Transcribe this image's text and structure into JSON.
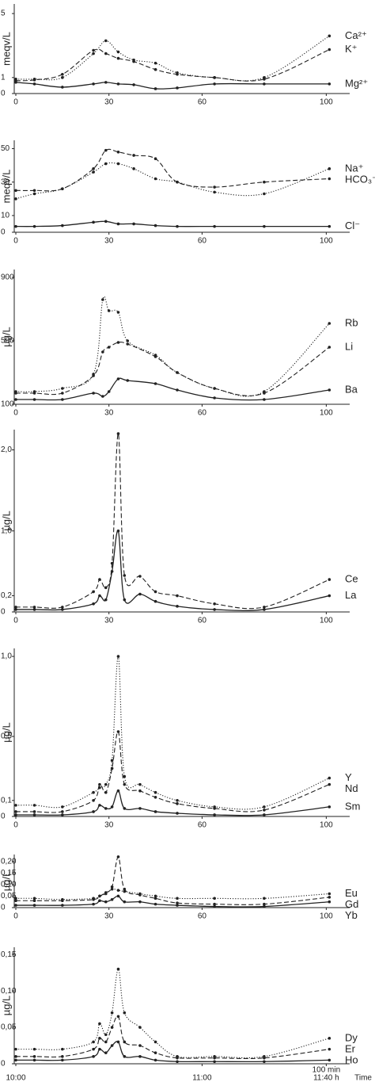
{
  "chart_data": [
    {
      "type": "line",
      "y_label": "meqv/L",
      "xlim": [
        0,
        105
      ],
      "xticks": [
        0,
        30,
        60,
        100
      ],
      "ylim": [
        0,
        5.6
      ],
      "yticks": [
        0,
        1,
        5
      ],
      "x": [
        0,
        6,
        15,
        25,
        29,
        33,
        38,
        45,
        52,
        64,
        80,
        101
      ],
      "series": [
        {
          "name": "Ca²⁺",
          "color": "#222222",
          "line_style": "dotted",
          "values": [
            0.9,
            0.9,
            1.0,
            2.5,
            3.3,
            2.6,
            2.1,
            1.9,
            1.3,
            1.0,
            1.0,
            3.6
          ]
        },
        {
          "name": "K⁺",
          "color": "#222222",
          "line_style": "dashed",
          "values": [
            0.8,
            0.85,
            1.2,
            2.7,
            2.5,
            2.2,
            2.0,
            1.5,
            1.2,
            1.0,
            0.9,
            2.75
          ]
        },
        {
          "name": "Mg²⁺",
          "color": "#222222",
          "line_style": "solid",
          "values": [
            0.7,
            0.6,
            0.4,
            0.6,
            0.7,
            0.6,
            0.55,
            0.3,
            0.35,
            0.6,
            0.6,
            0.6
          ]
        }
      ]
    },
    {
      "type": "line",
      "y_label": "meqv/L",
      "xlim": [
        0,
        105
      ],
      "xticks": [
        0,
        30,
        60,
        100
      ],
      "ylim": [
        0,
        55
      ],
      "yticks": [
        0,
        10,
        30,
        50
      ],
      "x": [
        0,
        6,
        15,
        25,
        29,
        33,
        38,
        45,
        52,
        64,
        80,
        101
      ],
      "series": [
        {
          "name": "Na⁺",
          "color": "#222222",
          "line_style": "dotted",
          "values": [
            20,
            23,
            26,
            36,
            41,
            41,
            38,
            32,
            30,
            24,
            23,
            38
          ]
        },
        {
          "name": "HCO₃⁻",
          "color": "#222222",
          "line_style": "dashed",
          "values": [
            25,
            25,
            26,
            38,
            49,
            48,
            46,
            44,
            30,
            27,
            30,
            32
          ]
        },
        {
          "name": "Cl⁻",
          "color": "#222222",
          "line_style": "solid",
          "values": [
            3.5,
            3.5,
            4,
            6,
            6.5,
            5,
            5,
            4,
            3.5,
            3.5,
            3.5,
            3.5
          ]
        }
      ]
    },
    {
      "type": "line",
      "y_label": "µg/L",
      "xlim": [
        0,
        105
      ],
      "xticks": [
        0,
        30,
        60,
        100
      ],
      "ylim": [
        100,
        950
      ],
      "yticks": [
        100,
        500,
        900
      ],
      "x": [
        0,
        6,
        15,
        25,
        28,
        30,
        33,
        36,
        45,
        52,
        64,
        80,
        101
      ],
      "series": [
        {
          "name": "Rb",
          "color": "#222222",
          "line_style": "dotted",
          "values": [
            180,
            180,
            200,
            290,
            760,
            690,
            680,
            500,
            410,
            300,
            200,
            180,
            610
          ]
        },
        {
          "name": "Li",
          "color": "#222222",
          "line_style": "dashed",
          "values": [
            170,
            170,
            170,
            280,
            430,
            460,
            490,
            480,
            400,
            300,
            200,
            170,
            460
          ]
        },
        {
          "name": "Ba",
          "color": "#222222",
          "line_style": "solid",
          "values": [
            130,
            130,
            130,
            170,
            150,
            180,
            260,
            250,
            230,
            190,
            140,
            130,
            190
          ]
        }
      ]
    },
    {
      "type": "line",
      "y_label": "µg/L",
      "xlim": [
        0,
        105
      ],
      "xticks": [
        0,
        30,
        60,
        100
      ],
      "ylim": [
        0,
        2.25
      ],
      "yticks": [
        0,
        {
          "value": 0.2,
          "label": "0,2"
        },
        {
          "value": 1.0,
          "label": "1,0"
        },
        {
          "value": 2.0,
          "label": "2,0"
        }
      ],
      "x": [
        0,
        6,
        15,
        25,
        27,
        29,
        31,
        33,
        35,
        40,
        45,
        52,
        64,
        80,
        101
      ],
      "series": [
        {
          "name": "Ce",
          "color": "#222222",
          "line_style": "dashed",
          "values": [
            0.06,
            0.06,
            0.06,
            0.25,
            0.4,
            0.3,
            0.6,
            2.2,
            0.45,
            0.44,
            0.25,
            0.2,
            0.1,
            0.06,
            0.4
          ]
        },
        {
          "name": "La",
          "color": "#222222",
          "line_style": "solid",
          "values": [
            0.03,
            0.03,
            0.03,
            0.1,
            0.2,
            0.15,
            0.5,
            1.0,
            0.15,
            0.22,
            0.13,
            0.07,
            0.03,
            0.03,
            0.2
          ]
        }
      ]
    },
    {
      "type": "line",
      "y_label": "µg/L",
      "xlim": [
        0,
        105
      ],
      "xticks": [
        0,
        30,
        60,
        100
      ],
      "ylim": [
        0,
        1.05
      ],
      "yticks": [
        0,
        {
          "value": 0.1,
          "label": "0,1"
        },
        {
          "value": 0.5,
          "label": "0,5"
        },
        {
          "value": 1.0,
          "label": "1,0"
        }
      ],
      "x": [
        0,
        6,
        15,
        25,
        27,
        29,
        31,
        33,
        35,
        40,
        45,
        52,
        64,
        80,
        101
      ],
      "series": [
        {
          "name": "Y",
          "color": "#222222",
          "line_style": "dotted",
          "values": [
            0.07,
            0.07,
            0.06,
            0.15,
            0.18,
            0.2,
            0.35,
            1.0,
            0.25,
            0.2,
            0.15,
            0.1,
            0.06,
            0.06,
            0.24
          ]
        },
        {
          "name": "Nd",
          "color": "#222222",
          "line_style": "dashed",
          "values": [
            0.03,
            0.03,
            0.03,
            0.1,
            0.2,
            0.15,
            0.3,
            0.53,
            0.2,
            0.16,
            0.12,
            0.08,
            0.05,
            0.04,
            0.2
          ]
        },
        {
          "name": "Sm",
          "color": "#222222",
          "line_style": "solid",
          "values": [
            0.01,
            0.01,
            0.01,
            0.03,
            0.07,
            0.05,
            0.06,
            0.16,
            0.05,
            0.05,
            0.03,
            0.02,
            0.01,
            0.01,
            0.06
          ]
        }
      ]
    },
    {
      "type": "line",
      "y_label": "µg/L",
      "xlim": [
        0,
        105
      ],
      "xticks": [
        0,
        30,
        60,
        100
      ],
      "ylim": [
        0,
        0.23
      ],
      "yticks": [
        0,
        {
          "value": 0.05,
          "label": "0,05"
        },
        {
          "value": 0.1,
          "label": "0,10"
        },
        {
          "value": 0.15,
          "label": "0,15"
        },
        {
          "value": 0.2,
          "label": "0,20"
        }
      ],
      "x": [
        0,
        6,
        15,
        25,
        27,
        29,
        31,
        33,
        35,
        40,
        45,
        52,
        64,
        80,
        101
      ],
      "series": [
        {
          "name": "Eu",
          "color": "#222222",
          "line_style": "dotted",
          "values": [
            0.04,
            0.04,
            0.035,
            0.04,
            0.05,
            0.06,
            0.08,
            0.075,
            0.07,
            0.06,
            0.05,
            0.04,
            0.04,
            0.04,
            0.06
          ]
        },
        {
          "name": "Gd",
          "color": "#222222",
          "line_style": "dashed",
          "values": [
            0.03,
            0.03,
            0.03,
            0.035,
            0.05,
            0.065,
            0.09,
            0.22,
            0.08,
            0.055,
            0.04,
            0.02,
            0.015,
            0.015,
            0.045
          ]
        },
        {
          "name": "Yb",
          "color": "#222222",
          "line_style": "solid",
          "values": [
            0.01,
            0.01,
            0.01,
            0.015,
            0.03,
            0.025,
            0.035,
            0.05,
            0.025,
            0.025,
            0.015,
            0.01,
            0.005,
            0.005,
            0.025
          ]
        }
      ]
    },
    {
      "type": "line",
      "y_label": "µg/L",
      "x_label": "Time",
      "annotation": "100 min",
      "xlim": [
        0,
        105
      ],
      "xticks": [
        {
          "value": 0,
          "label": "10:00"
        },
        {
          "value": 60,
          "label": "11:00"
        },
        {
          "value": 100,
          "label": "11:40 h"
        }
      ],
      "ylim": [
        0,
        0.16
      ],
      "yticks": [
        0,
        {
          "value": 0.05,
          "label": "0,05"
        },
        {
          "value": 0.1,
          "label": "0,10"
        },
        {
          "value": 0.15,
          "label": "0,15"
        }
      ],
      "x": [
        0,
        6,
        15,
        25,
        27,
        29,
        31,
        33,
        35,
        40,
        45,
        52,
        64,
        80,
        101
      ],
      "series": [
        {
          "name": "Dy",
          "color": "#222222",
          "line_style": "dotted",
          "values": [
            0.02,
            0.02,
            0.02,
            0.03,
            0.055,
            0.04,
            0.07,
            0.13,
            0.07,
            0.05,
            0.03,
            0.01,
            0.01,
            0.01,
            0.035
          ]
        },
        {
          "name": "Er",
          "color": "#222222",
          "line_style": "dashed",
          "values": [
            0.01,
            0.01,
            0.01,
            0.02,
            0.035,
            0.03,
            0.05,
            0.065,
            0.03,
            0.025,
            0.015,
            0.008,
            0.008,
            0.008,
            0.02
          ]
        },
        {
          "name": "Ho",
          "color": "#222222",
          "line_style": "solid",
          "values": [
            0.005,
            0.005,
            0.005,
            0.01,
            0.02,
            0.015,
            0.025,
            0.03,
            0.01,
            0.01,
            0.005,
            0.003,
            0.003,
            0.003,
            0.005
          ]
        }
      ]
    }
  ]
}
